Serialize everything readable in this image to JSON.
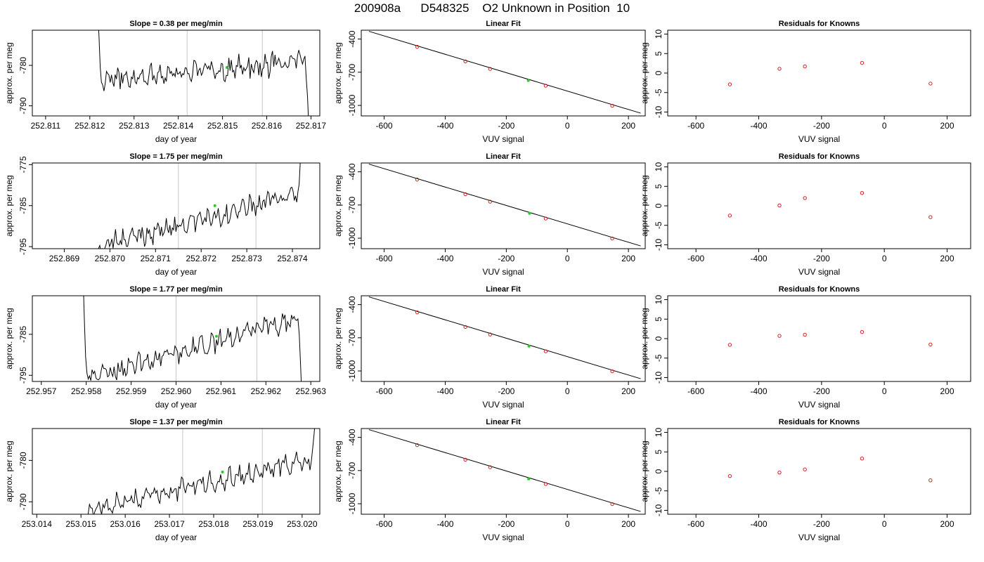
{
  "title": "200908a      D548325    O2 Unknown in Position  10",
  "chart_data": [
    {
      "type": "line",
      "panel": "slope",
      "row": 1,
      "title": "Slope =  0.38  per meg/min",
      "xlabel": "day of year",
      "ylabel": "approx. per meg",
      "xlim": [
        252.8107,
        252.8172
      ],
      "ylim": [
        -792.5,
        -771.3
      ],
      "xticks": [
        "252.811",
        "252.812",
        "252.813",
        "252.814",
        "252.815",
        "252.816",
        "252.817"
      ],
      "yticks": [
        "-780",
        "-790"
      ],
      "vlines": [
        252.8142,
        252.8159
      ],
      "x_start": 252.81215,
      "x_end": 252.81695,
      "y_start": -760,
      "y_end": -795,
      "y_base_start": -783.5,
      "y_base_end": -779.0,
      "noise": 2.2,
      "marker": {
        "x": 252.8151,
        "y": -780.5,
        "color": "#22cc22"
      }
    },
    {
      "type": "scatter",
      "panel": "fit",
      "row": 1,
      "title": "Linear Fit",
      "xlabel": "VUV signal",
      "ylabel": "approx. per meg",
      "xlim": [
        -675,
        255
      ],
      "ylim": [
        -1095,
        -320
      ],
      "xticks": [
        -600,
        -400,
        -200,
        0,
        200
      ],
      "yticks": [
        -400,
        -700,
        -1000
      ],
      "fit_line": {
        "x": [
          -650,
          240
        ],
        "y": [
          -330,
          -1070
        ]
      },
      "points": [
        {
          "x": -492,
          "y": -470
        },
        {
          "x": -334,
          "y": -602
        },
        {
          "x": -253,
          "y": -670
        },
        {
          "x": -71,
          "y": -822
        },
        {
          "x": 147,
          "y": -1003
        }
      ],
      "unknown": {
        "x": -128,
        "y": -775
      }
    },
    {
      "type": "scatter",
      "panel": "residuals",
      "row": 1,
      "title": "Residuals for Knowns",
      "xlabel": "VUV signal",
      "ylabel": "approx. per meg",
      "xlim": [
        -690,
        275
      ],
      "ylim": [
        -11,
        11
      ],
      "xticks": [
        -600,
        -400,
        -200,
        0,
        200
      ],
      "yticks": [
        10,
        5,
        0,
        -5,
        -10
      ],
      "points": [
        {
          "x": -492,
          "y": -2.9
        },
        {
          "x": -334,
          "y": 1.1
        },
        {
          "x": -253,
          "y": 1.7
        },
        {
          "x": -71,
          "y": 2.6
        },
        {
          "x": 147,
          "y": -2.7
        }
      ]
    },
    {
      "type": "line",
      "panel": "slope",
      "row": 2,
      "title": "Slope =  1.75  per meg/min",
      "xlabel": "day of year",
      "ylabel": "approx. per meg",
      "xlim": [
        252.8683,
        252.8746
      ],
      "ylim": [
        -795.5,
        -774.6
      ],
      "xticks": [
        "252.869",
        "252.870",
        "252.871",
        "252.872",
        "252.873",
        "252.874"
      ],
      "yticks": [
        "-775",
        "-785",
        "-795"
      ],
      "vlines": [
        252.8715,
        252.8732
      ],
      "x_start": 252.8697,
      "x_end": 252.8742,
      "y_start": -800,
      "y_end": -770,
      "y_base_start": -795.0,
      "y_base_end": -782.0,
      "noise": 2.0,
      "marker": {
        "x": 252.8723,
        "y": -785.0,
        "color": "#22cc22"
      }
    },
    {
      "type": "scatter",
      "panel": "fit",
      "row": 2,
      "title": "Linear Fit",
      "xlabel": "VUV signal",
      "ylabel": "approx. per meg",
      "xlim": [
        -675,
        255
      ],
      "ylim": [
        -1095,
        -320
      ],
      "xticks": [
        -600,
        -400,
        -200,
        0,
        200
      ],
      "yticks": [
        -400,
        -700,
        -1000
      ],
      "fit_line": {
        "x": [
          -650,
          240
        ],
        "y": [
          -330,
          -1070
        ]
      },
      "points": [
        {
          "x": -492,
          "y": -470
        },
        {
          "x": -334,
          "y": -602
        },
        {
          "x": -253,
          "y": -670
        },
        {
          "x": -71,
          "y": -822
        },
        {
          "x": 147,
          "y": -1003
        }
      ],
      "unknown": {
        "x": -124,
        "y": -775
      }
    },
    {
      "type": "scatter",
      "panel": "residuals",
      "row": 2,
      "title": "Residuals for Knowns",
      "xlabel": "VUV signal",
      "ylabel": "approx. per meg",
      "xlim": [
        -690,
        275
      ],
      "ylim": [
        -11,
        11
      ],
      "xticks": [
        -600,
        -400,
        -200,
        0,
        200
      ],
      "yticks": [
        10,
        5,
        0,
        -5,
        -10
      ],
      "points": [
        {
          "x": -492,
          "y": -2.5
        },
        {
          "x": -334,
          "y": 0.1
        },
        {
          "x": -253,
          "y": 2.0
        },
        {
          "x": -71,
          "y": 3.3
        },
        {
          "x": 147,
          "y": -2.9
        }
      ]
    },
    {
      "type": "line",
      "panel": "slope",
      "row": 3,
      "title": "Slope =  1.77  per meg/min",
      "xlabel": "day of year",
      "ylabel": "approx. per meg",
      "xlim": [
        252.9568,
        252.9632
      ],
      "ylim": [
        -796.5,
        -775.6
      ],
      "xticks": [
        "252.957",
        "252.958",
        "252.959",
        "252.960",
        "252.961",
        "252.962",
        "252.963"
      ],
      "yticks": [
        "-785",
        "-795"
      ],
      "vlines": [
        252.96,
        252.9618
      ],
      "x_start": 252.9579,
      "x_end": 252.9628,
      "y_start": -760,
      "y_end": -800,
      "y_base_start": -796.0,
      "y_base_end": -781.0,
      "noise": 1.9,
      "marker": {
        "x": 252.9609,
        "y": -785.5,
        "color": "#22cc22"
      }
    },
    {
      "type": "scatter",
      "panel": "fit",
      "row": 3,
      "title": "Linear Fit",
      "xlabel": "VUV signal",
      "ylabel": "approx. per meg",
      "xlim": [
        -675,
        255
      ],
      "ylim": [
        -1095,
        -320
      ],
      "xticks": [
        -600,
        -400,
        -200,
        0,
        200
      ],
      "yticks": [
        -400,
        -700,
        -1000
      ],
      "fit_line": {
        "x": [
          -650,
          240
        ],
        "y": [
          -330,
          -1070
        ]
      },
      "points": [
        {
          "x": -492,
          "y": -470
        },
        {
          "x": -334,
          "y": -602
        },
        {
          "x": -253,
          "y": -670
        },
        {
          "x": -71,
          "y": -822
        },
        {
          "x": 147,
          "y": -1003
        }
      ],
      "unknown": {
        "x": -126,
        "y": -776
      }
    },
    {
      "type": "scatter",
      "panel": "residuals",
      "row": 3,
      "title": "Residuals for Knowns",
      "xlabel": "VUV signal",
      "ylabel": "approx. per meg",
      "xlim": [
        -690,
        275
      ],
      "ylim": [
        -11,
        11
      ],
      "xticks": [
        -600,
        -400,
        -200,
        0,
        200
      ],
      "yticks": [
        10,
        5,
        0,
        -5,
        -10
      ],
      "points": [
        {
          "x": -492,
          "y": -1.6
        },
        {
          "x": -334,
          "y": 0.7
        },
        {
          "x": -253,
          "y": 1.0
        },
        {
          "x": -71,
          "y": 1.7
        },
        {
          "x": 147,
          "y": -1.5
        }
      ]
    },
    {
      "type": "line",
      "panel": "slope",
      "row": 4,
      "title": "Slope =  1.37  per meg/min",
      "xlabel": "day of year",
      "ylabel": "approx. per meg",
      "xlim": [
        253.0139,
        253.0204
      ],
      "ylim": [
        -793.0,
        -772.3
      ],
      "xticks": [
        "253.014",
        "253.015",
        "253.016",
        "253.017",
        "253.018",
        "253.019",
        "253.020"
      ],
      "yticks": [
        "-780",
        "-790"
      ],
      "vlines": [
        253.0173,
        253.0191
      ],
      "x_start": 253.0151,
      "x_end": 253.0203,
      "y_start": -795,
      "y_end": -770,
      "y_base_start": -792.0,
      "y_base_end": -779.5,
      "noise": 1.9,
      "marker": {
        "x": 253.0182,
        "y": -782.8,
        "color": "#22cc22"
      }
    },
    {
      "type": "scatter",
      "panel": "fit",
      "row": 4,
      "title": "Linear Fit",
      "xlabel": "VUV signal",
      "ylabel": "approx. per meg",
      "xlim": [
        -675,
        255
      ],
      "ylim": [
        -1095,
        -320
      ],
      "xticks": [
        -600,
        -400,
        -200,
        0,
        200
      ],
      "yticks": [
        -400,
        -700,
        -1000
      ],
      "fit_line": {
        "x": [
          -650,
          240
        ],
        "y": [
          -330,
          -1070
        ]
      },
      "points": [
        {
          "x": -492,
          "y": -470
        },
        {
          "x": -334,
          "y": -602
        },
        {
          "x": -253,
          "y": -670
        },
        {
          "x": -71,
          "y": -822
        },
        {
          "x": 147,
          "y": -1003
        }
      ],
      "unknown": {
        "x": -127,
        "y": -776
      }
    },
    {
      "type": "scatter",
      "panel": "residuals",
      "row": 4,
      "title": "Residuals for Knowns",
      "xlabel": "VUV signal",
      "ylabel": "approx. per meg",
      "xlim": [
        -690,
        275
      ],
      "ylim": [
        -11,
        11
      ],
      "xticks": [
        -600,
        -400,
        -200,
        0,
        200
      ],
      "yticks": [
        10,
        5,
        0,
        -5,
        -10
      ],
      "points": [
        {
          "x": -492,
          "y": -1.2
        },
        {
          "x": -334,
          "y": -0.3
        },
        {
          "x": -253,
          "y": 0.5
        },
        {
          "x": -71,
          "y": 3.3
        },
        {
          "x": 147,
          "y": -2.3
        }
      ]
    }
  ],
  "colors": {
    "known_point": "#cc2222",
    "unknown_point": "#22cc22",
    "vline": "#c8c8c8",
    "line": "#000000"
  }
}
